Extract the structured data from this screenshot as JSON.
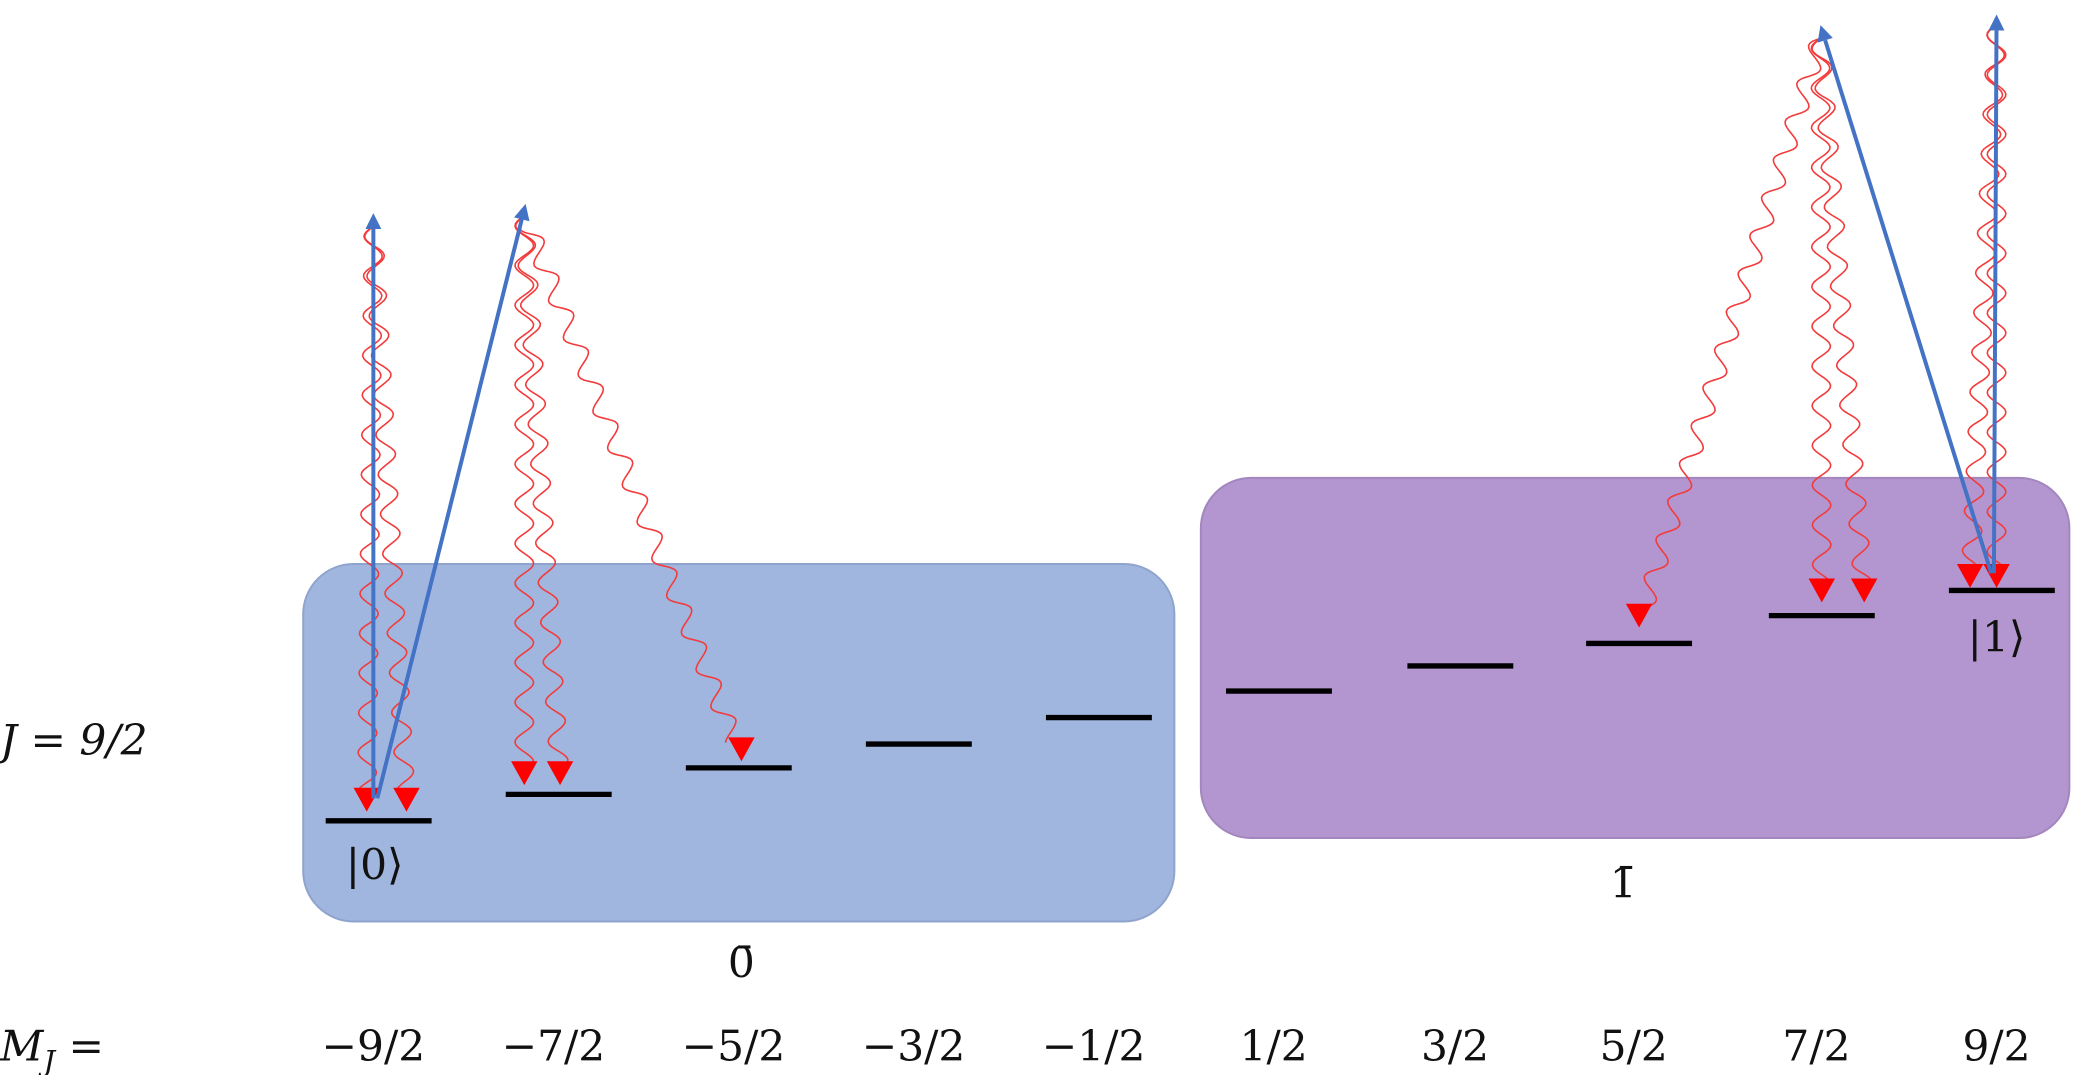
{
  "row_label": "J = 9/2",
  "axis_label": {
    "main": "M",
    "sub": "J",
    "rest": " ="
  },
  "mj_values": [
    "−9/2",
    "−7/2",
    "−5/2",
    "−3/2",
    "−1/2",
    "1/2",
    "3/2",
    "5/2",
    "7/2",
    "9/2"
  ],
  "states": {
    "zero": "|0⟩",
    "one": "|1⟩"
  },
  "groups": {
    "zero": "0̄",
    "one": "1̄"
  }
}
